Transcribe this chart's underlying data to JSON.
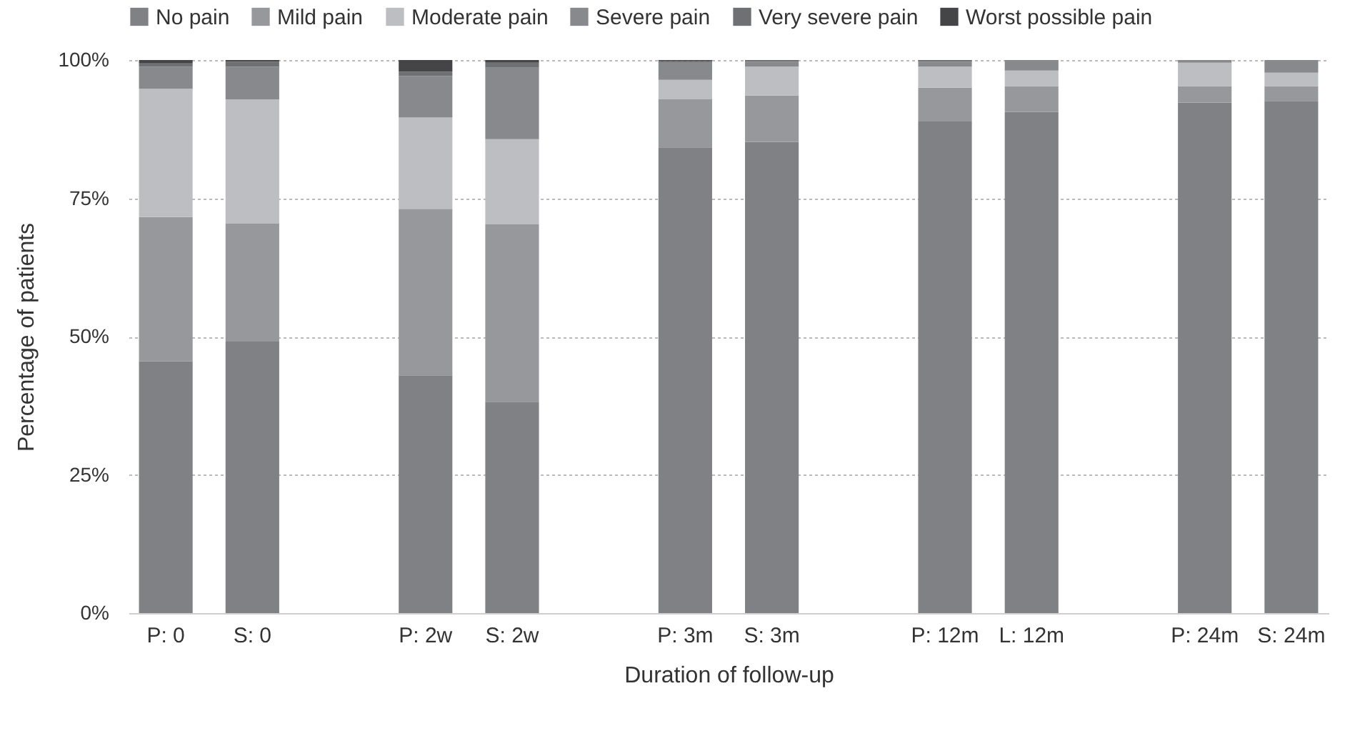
{
  "chart_data": {
    "type": "bar",
    "stacked": true,
    "xlabel": "Duration of follow-up",
    "ylabel": "Percentage of patients",
    "categories": [
      "P: 0",
      "S: 0",
      null,
      "P: 2w",
      "S: 2w",
      null,
      "P: 3m",
      "S: 3m",
      null,
      "P: 12m",
      "L: 12m",
      null,
      "P: 24m",
      "S: 24m"
    ],
    "series": [
      {
        "name": "No pain",
        "color": "#808185",
        "values": [
          45.5,
          49.1,
          null,
          43.0,
          38.2,
          null,
          84.2,
          85.2,
          null,
          88.9,
          90.6,
          null,
          92.3,
          92.6
        ]
      },
      {
        "name": "Mild pain",
        "color": "#97989c",
        "values": [
          26.1,
          21.3,
          null,
          30.1,
          32.1,
          null,
          8.7,
          8.4,
          null,
          6.1,
          4.7,
          null,
          3.0,
          2.7
        ]
      },
      {
        "name": "Moderate pain",
        "color": "#bdbec2",
        "values": [
          23.2,
          22.5,
          null,
          16.5,
          15.4,
          null,
          3.5,
          5.2,
          null,
          3.8,
          2.8,
          null,
          4.2,
          2.4
        ]
      },
      {
        "name": "Severe pain",
        "color": "#88898d",
        "values": [
          4.0,
          5.9,
          null,
          7.5,
          12.9,
          null,
          3.1,
          0.9,
          null,
          0.9,
          1.9,
          null,
          0.5,
          2.3
        ]
      },
      {
        "name": "Very severe pain",
        "color": "#6f7074",
        "values": [
          0.6,
          0.9,
          null,
          0.8,
          0.9,
          null,
          0.3,
          0.3,
          null,
          0.3,
          0,
          null,
          0,
          0
        ]
      },
      {
        "name": "Worst possible pain",
        "color": "#454548",
        "values": [
          0.6,
          0.3,
          null,
          2.1,
          0.5,
          null,
          0.2,
          0,
          null,
          0,
          0,
          null,
          0,
          0
        ]
      }
    ],
    "ylim": [
      0,
      100
    ],
    "yticks": [
      {
        "value": 0,
        "label": "0%"
      },
      {
        "value": 25,
        "label": "25%"
      },
      {
        "value": 50,
        "label": "50%"
      },
      {
        "value": 75,
        "label": "75%"
      },
      {
        "value": 100,
        "label": "100%"
      }
    ],
    "grid": "y",
    "legend": "top left"
  }
}
